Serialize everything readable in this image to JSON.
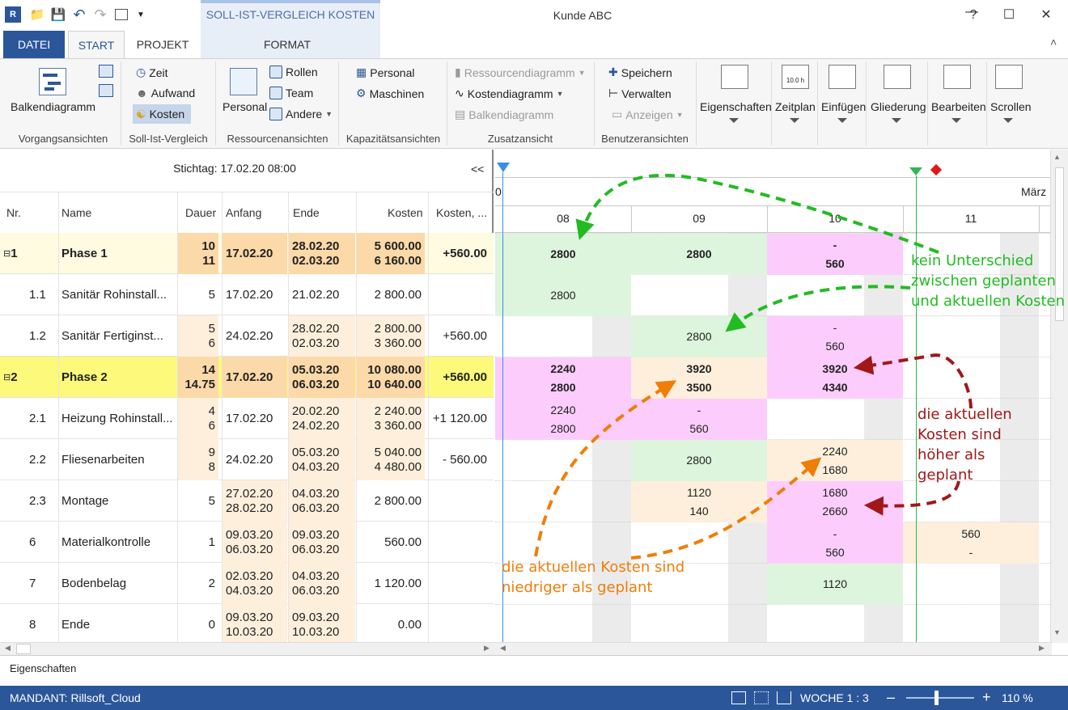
{
  "window": {
    "title": "Kunde ABC",
    "context_tab_title": "SOLL-IST-VERGLEICH KOSTEN"
  },
  "tabs": {
    "datei": "DATEI",
    "start": "START",
    "projekt": "PROJEKT",
    "format": "FORMAT"
  },
  "ribbon": {
    "vorgangsansichten": {
      "balkendiagramm": "Balkendiagramm",
      "label": "Vorgangsansichten"
    },
    "soll_ist": {
      "zeit": "Zeit",
      "aufwand": "Aufwand",
      "kosten": "Kosten",
      "label": "Soll-Ist-Vergleich"
    },
    "ressourcen": {
      "personal": "Personal",
      "rollen": "Rollen",
      "team": "Team",
      "andere": "Andere",
      "label": "Ressourcenansichten"
    },
    "kapazitaet": {
      "personal": "Personal",
      "maschinen": "Maschinen",
      "label": "Kapazitätsansichten"
    },
    "zusatz": {
      "ressourcendiagramm": "Ressourcendiagramm",
      "kostendiagramm": "Kostendiagramm",
      "balkendiagramm": "Balkendiagramm",
      "label": "Zusatzansicht"
    },
    "benutzer": {
      "speichern": "Speichern",
      "verwalten": "Verwalten",
      "anzeigen": "Anzeigen",
      "label": "Benutzeransichten"
    },
    "large": {
      "eigenschaften": "Eigenschaften",
      "zeitplan": "Zeitplan",
      "einfuegen": "Einfügen",
      "gliederung": "Gliederung",
      "bearbeiten": "Bearbeiten",
      "scrollen": "Scrollen",
      "zeitplan_icon_text": "10.0 h"
    }
  },
  "table": {
    "stichtag": "Stichtag: 17.02.20 08:00",
    "collapse": "<<",
    "headers": {
      "nr": "Nr.",
      "name": "Name",
      "dauer": "Dauer",
      "anfang": "Anfang",
      "ende": "Ende",
      "kosten": "Kosten",
      "kosten_diff": "Kosten, ..."
    },
    "rows": [
      {
        "nr": "1",
        "name": "Phase 1",
        "dauer1": "10",
        "dauer2": "11",
        "anfang1": "17.02.20",
        "anfang2": "",
        "ende1": "28.02.20",
        "ende2": "02.03.20",
        "kosten1": "5 600.00",
        "kosten2": "6 160.00",
        "diff": "+560.00"
      },
      {
        "nr": "1.1",
        "name": "Sanitär Rohinstall...",
        "dauer1": "5",
        "dauer2": "",
        "anfang1": "17.02.20",
        "anfang2": "",
        "ende1": "21.02.20",
        "ende2": "",
        "kosten1": "2 800.00",
        "kosten2": "",
        "diff": ""
      },
      {
        "nr": "1.2",
        "name": "Sanitär Fertiginst...",
        "dauer1": "5",
        "dauer2": "6",
        "anfang1": "24.02.20",
        "anfang2": "",
        "ende1": "28.02.20",
        "ende2": "02.03.20",
        "kosten1": "2 800.00",
        "kosten2": "3 360.00",
        "diff": "+560.00"
      },
      {
        "nr": "2",
        "name": "Phase 2",
        "dauer1": "14",
        "dauer2": "14.75",
        "anfang1": "17.02.20",
        "anfang2": "",
        "ende1": "05.03.20",
        "ende2": "06.03.20",
        "kosten1": "10 080.00",
        "kosten2": "10 640.00",
        "diff": "+560.00"
      },
      {
        "nr": "2.1",
        "name": "Heizung Rohinstall...",
        "dauer1": "4",
        "dauer2": "6",
        "anfang1": "17.02.20",
        "anfang2": "",
        "ende1": "20.02.20",
        "ende2": "24.02.20",
        "kosten1": "2 240.00",
        "kosten2": "3 360.00",
        "diff": "+1 120.00"
      },
      {
        "nr": "2.2",
        "name": "Fliesenarbeiten",
        "dauer1": "9",
        "dauer2": "8",
        "anfang1": "24.02.20",
        "anfang2": "",
        "ende1": "05.03.20",
        "ende2": "04.03.20",
        "kosten1": "5 040.00",
        "kosten2": "4 480.00",
        "diff": "- 560.00"
      },
      {
        "nr": "2.3",
        "name": "Montage",
        "dauer1": "5",
        "dauer2": "",
        "anfang1": "27.02.20",
        "anfang2": "28.02.20",
        "ende1": "04.03.20",
        "ende2": "06.03.20",
        "kosten1": "2 800.00",
        "kosten2": "",
        "diff": ""
      },
      {
        "nr": "6",
        "name": "Materialkontrolle",
        "dauer1": "1",
        "dauer2": "",
        "anfang1": "09.03.20",
        "anfang2": "06.03.20",
        "ende1": "09.03.20",
        "ende2": "06.03.20",
        "kosten1": "560.00",
        "kosten2": "",
        "diff": ""
      },
      {
        "nr": "7",
        "name": "Bodenbelag",
        "dauer1": "2",
        "dauer2": "",
        "anfang1": "02.03.20",
        "anfang2": "04.03.20",
        "ende1": "04.03.20",
        "ende2": "06.03.20",
        "kosten1": "1 120.00",
        "kosten2": "",
        "diff": ""
      },
      {
        "nr": "8",
        "name": "Ende",
        "dauer1": "0",
        "dauer2": "",
        "anfang1": "09.03.20",
        "anfang2": "10.03.20",
        "ende1": "09.03.20",
        "ende2": "10.03.20",
        "kosten1": "0.00",
        "kosten2": "",
        "diff": ""
      }
    ]
  },
  "gantt": {
    "month_left": "0",
    "month_right": "März",
    "weeks": [
      "08",
      "09",
      "10",
      "11"
    ],
    "cells": [
      {
        "l1": "2800",
        "l2": "",
        "bold": true
      },
      {
        "l1": "2800",
        "l2": "",
        "bold": true
      },
      {
        "l1": "-",
        "l2": "560",
        "bold": true
      },
      {
        "l1": "2800",
        "l2": ""
      },
      {
        "l1": "2800",
        "l2": ""
      },
      {
        "l1": "-",
        "l2": "560"
      },
      {
        "l1": "2240",
        "l2": "2800",
        "bold": true
      },
      {
        "l1": "3920",
        "l2": "3500",
        "bold": true
      },
      {
        "l1": "3920",
        "l2": "4340",
        "bold": true
      },
      {
        "l1": "2240",
        "l2": "2800"
      },
      {
        "l1": "-",
        "l2": "560"
      },
      {
        "l1": "2800",
        "l2": ""
      },
      {
        "l1": "2240",
        "l2": "1680"
      },
      {
        "l1": "1120",
        "l2": "140"
      },
      {
        "l1": "1680",
        "l2": "2660"
      },
      {
        "l1": "-",
        "l2": "560"
      },
      {
        "l1": "560",
        "l2": "-"
      },
      {
        "l1": "1120",
        "l2": ""
      }
    ],
    "colors": {
      "same": "#dcf5dc",
      "higher": "#fccdfc",
      "lower": "#fdefdc",
      "weekend": "#ebebeb"
    }
  },
  "annotations": {
    "green": "kein Unterschied zwischen geplanten und aktuellen Kosten",
    "red": "die aktuellen Kosten sind höher als geplant",
    "orange": "die aktuellen Kosten sind niedriger als geplant",
    "green_color": "#22bb22",
    "red_color": "#a01818",
    "orange_color": "#f07d0a"
  },
  "bottom": {
    "eigenschaften": "Eigenschaften"
  },
  "status": {
    "mandant": "MANDANT: Rillsoft_Cloud",
    "woche": "WOCHE 1 : 3",
    "zoom": "110 %"
  }
}
